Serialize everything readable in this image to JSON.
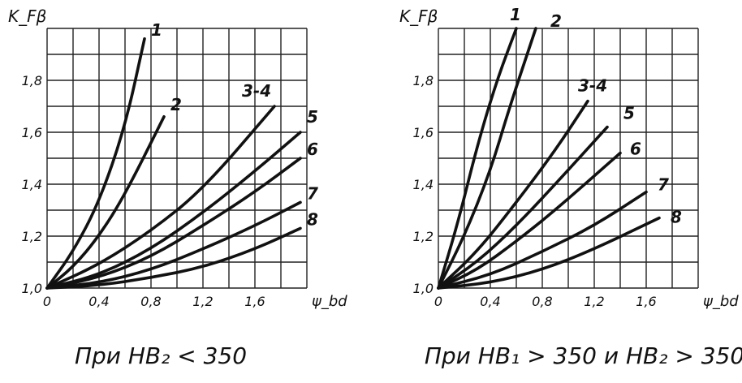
{
  "chart_data": [
    {
      "type": "line",
      "ylabel": "K_Fβ",
      "xlabel": "ψ_bd",
      "xlim": [
        0,
        2.0
      ],
      "ylim": [
        1.0,
        2.0
      ],
      "xticks": [
        "0",
        "0,4",
        "0,8",
        "1,2",
        "1,6"
      ],
      "yticks": [
        "1,0",
        "1,2",
        "1,4",
        "1,6",
        "1,8"
      ],
      "grid": true,
      "caption": "При HB₂ < 350",
      "series": [
        {
          "name": "1",
          "x": [
            0,
            0.2,
            0.4,
            0.6,
            0.75
          ],
          "y": [
            1.0,
            1.14,
            1.33,
            1.62,
            1.96
          ]
        },
        {
          "name": "2",
          "x": [
            0,
            0.2,
            0.4,
            0.6,
            0.9
          ],
          "y": [
            1.0,
            1.08,
            1.2,
            1.36,
            1.66
          ]
        },
        {
          "name": "3-4",
          "x": [
            0,
            0.4,
            0.8,
            1.2,
            1.75
          ],
          "y": [
            1.0,
            1.09,
            1.22,
            1.38,
            1.7
          ]
        },
        {
          "name": "5",
          "x": [
            0,
            0.4,
            0.8,
            1.2,
            1.6,
            1.95
          ],
          "y": [
            1.0,
            1.05,
            1.15,
            1.29,
            1.45,
            1.6
          ]
        },
        {
          "name": "6",
          "x": [
            0,
            0.4,
            0.8,
            1.2,
            1.6,
            1.95
          ],
          "y": [
            1.0,
            1.04,
            1.12,
            1.24,
            1.37,
            1.5
          ]
        },
        {
          "name": "7",
          "x": [
            0,
            0.4,
            0.8,
            1.2,
            1.6,
            1.95
          ],
          "y": [
            1.0,
            1.02,
            1.07,
            1.15,
            1.24,
            1.33
          ]
        },
        {
          "name": "8",
          "x": [
            0,
            0.4,
            0.8,
            1.2,
            1.6,
            1.95
          ],
          "y": [
            1.0,
            1.01,
            1.04,
            1.08,
            1.15,
            1.23
          ]
        }
      ],
      "series_labels": [
        "1",
        "2",
        "3-4",
        "5",
        "6",
        "7",
        "8"
      ]
    },
    {
      "type": "line",
      "ylabel": "K_Fβ",
      "xlabel": "ψ_bd",
      "xlim": [
        0,
        2.0
      ],
      "ylim": [
        1.0,
        2.0
      ],
      "xticks": [
        "0",
        "0,4",
        "0,8",
        "1,2",
        "1,6"
      ],
      "yticks": [
        "1,0",
        "1,2",
        "1,4",
        "1,6",
        "1,8"
      ],
      "grid": true,
      "caption": "При HB₁ > 350 и HB₂ > 350",
      "series": [
        {
          "name": "1",
          "x": [
            0,
            0.15,
            0.3,
            0.45,
            0.6
          ],
          "y": [
            1.0,
            1.25,
            1.55,
            1.8,
            2.0
          ]
        },
        {
          "name": "2",
          "x": [
            0,
            0.2,
            0.4,
            0.55,
            0.75
          ],
          "y": [
            1.0,
            1.2,
            1.45,
            1.7,
            2.0
          ]
        },
        {
          "name": "3-4",
          "x": [
            0,
            0.3,
            0.6,
            0.9,
            1.15
          ],
          "y": [
            1.0,
            1.14,
            1.33,
            1.53,
            1.72
          ]
        },
        {
          "name": "5",
          "x": [
            0,
            0.3,
            0.6,
            0.9,
            1.3
          ],
          "y": [
            1.0,
            1.1,
            1.24,
            1.4,
            1.62
          ]
        },
        {
          "name": "6",
          "x": [
            0,
            0.3,
            0.6,
            0.9,
            1.4
          ],
          "y": [
            1.0,
            1.07,
            1.18,
            1.3,
            1.52
          ]
        },
        {
          "name": "7",
          "x": [
            0,
            0.4,
            0.8,
            1.2,
            1.6
          ],
          "y": [
            1.0,
            1.05,
            1.14,
            1.24,
            1.37
          ]
        },
        {
          "name": "8",
          "x": [
            0,
            0.4,
            0.8,
            1.2,
            1.7
          ],
          "y": [
            1.0,
            1.02,
            1.07,
            1.15,
            1.27
          ]
        }
      ],
      "series_labels": [
        "1",
        "2",
        "3-4",
        "5",
        "6",
        "7",
        "8"
      ]
    }
  ]
}
